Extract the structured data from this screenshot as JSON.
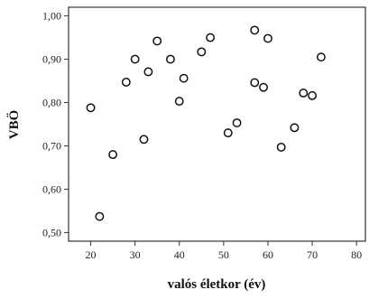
{
  "chart_data": {
    "type": "scatter",
    "xlabel": "valós életkor (év)",
    "ylabel": "VBÖ",
    "xlim": [
      15,
      82
    ],
    "ylim": [
      0.48,
      1.02
    ],
    "x_ticks": [
      20,
      30,
      40,
      50,
      60,
      70,
      80
    ],
    "x_tick_labels": [
      "20",
      "30",
      "40",
      "50",
      "60",
      "70",
      "80"
    ],
    "y_ticks": [
      0.5,
      0.6,
      0.7,
      0.8,
      0.9,
      1.0
    ],
    "y_tick_labels": [
      "0,50",
      "0,60",
      "0,70",
      "0,80",
      "0,90",
      "1,00"
    ],
    "grid": false,
    "marker": "hollow-circle",
    "series": [
      {
        "points": [
          {
            "x": 20,
            "y": 0.788
          },
          {
            "x": 22,
            "y": 0.537
          },
          {
            "x": 25,
            "y": 0.68
          },
          {
            "x": 28,
            "y": 0.847
          },
          {
            "x": 30,
            "y": 0.9
          },
          {
            "x": 32,
            "y": 0.715
          },
          {
            "x": 33,
            "y": 0.871
          },
          {
            "x": 35,
            "y": 0.942
          },
          {
            "x": 38,
            "y": 0.9
          },
          {
            "x": 40,
            "y": 0.803
          },
          {
            "x": 41,
            "y": 0.856
          },
          {
            "x": 45,
            "y": 0.917
          },
          {
            "x": 47,
            "y": 0.95
          },
          {
            "x": 51,
            "y": 0.73
          },
          {
            "x": 53,
            "y": 0.753
          },
          {
            "x": 57,
            "y": 0.967
          },
          {
            "x": 57,
            "y": 0.846
          },
          {
            "x": 59,
            "y": 0.835
          },
          {
            "x": 60,
            "y": 0.948
          },
          {
            "x": 63,
            "y": 0.697
          },
          {
            "x": 66,
            "y": 0.742
          },
          {
            "x": 68,
            "y": 0.822
          },
          {
            "x": 70,
            "y": 0.816
          },
          {
            "x": 72,
            "y": 0.905
          }
        ]
      }
    ]
  }
}
